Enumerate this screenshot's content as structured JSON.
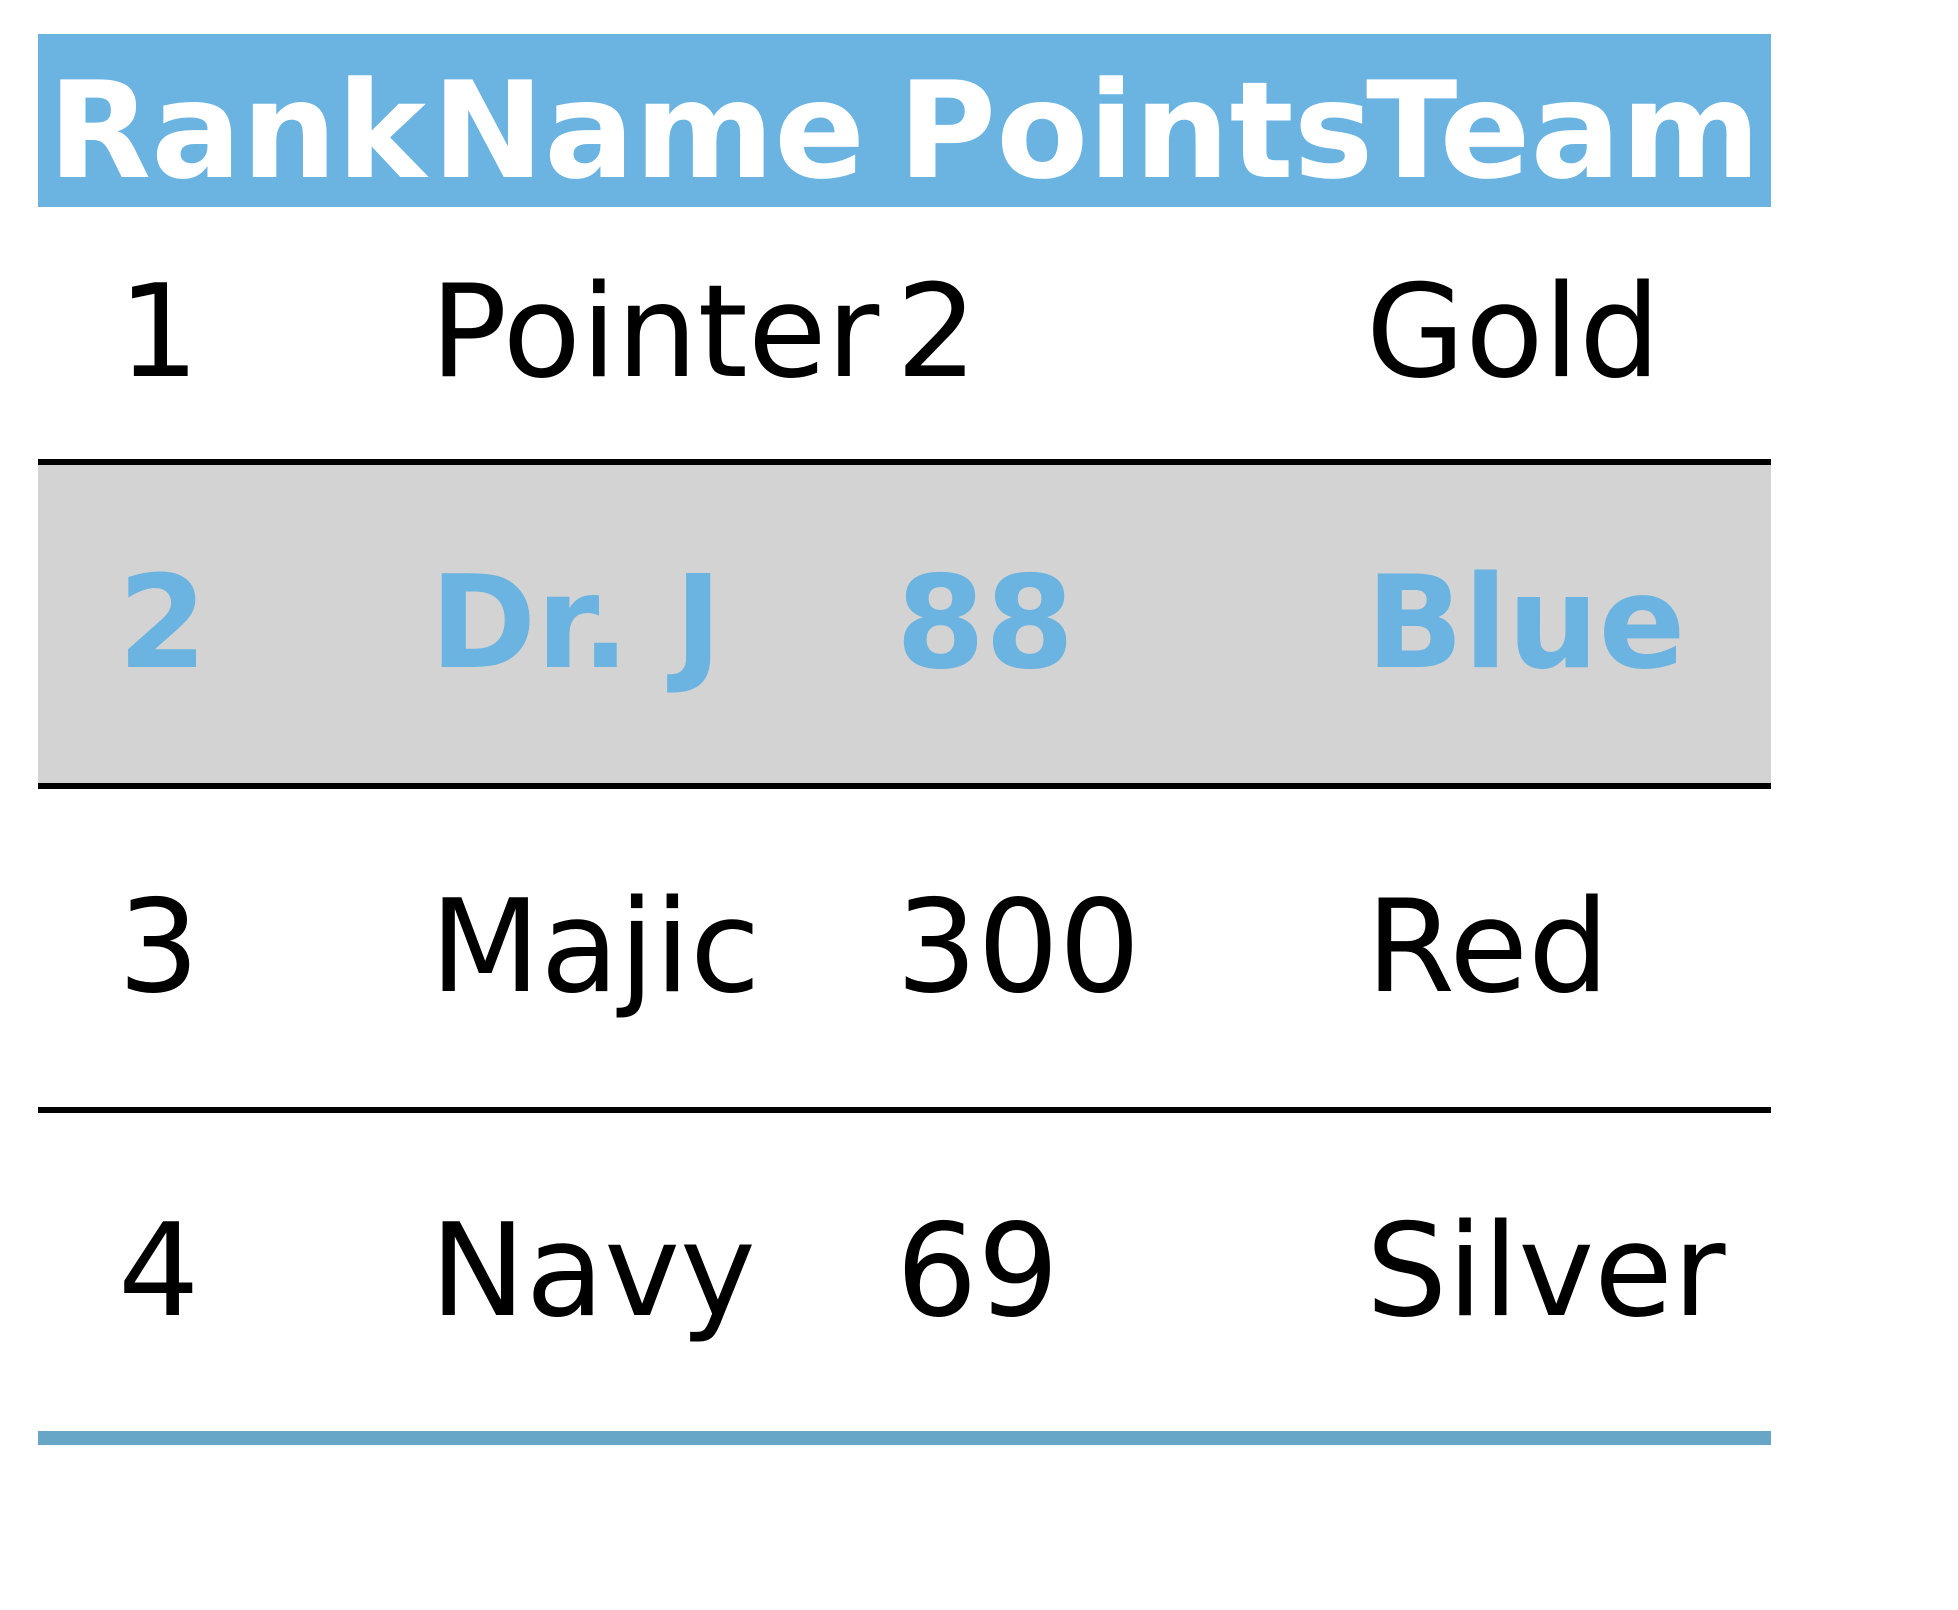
{
  "table": {
    "columns": [
      "Rank",
      "Name",
      "Points",
      "Team"
    ],
    "rows": [
      {
        "rank": "1",
        "name": "Pointer",
        "points": "2",
        "team": "Gold"
      },
      {
        "rank": "2",
        "name": "Dr. J",
        "points": "88",
        "team": "Blue"
      },
      {
        "rank": "3",
        "name": "Majic",
        "points": "300",
        "team": "Red"
      },
      {
        "rank": "4",
        "name": "Navy",
        "points": "69",
        "team": "Silver"
      }
    ],
    "highlighted_row": 2
  },
  "colors": {
    "header_bg": "#6bb3e0",
    "header_text": "#ffffff",
    "highlight_bg": "#d3d3d3",
    "highlight_text": "#6bb3e0",
    "divider": "#000000",
    "bottom_rule": "#68a6c8"
  }
}
